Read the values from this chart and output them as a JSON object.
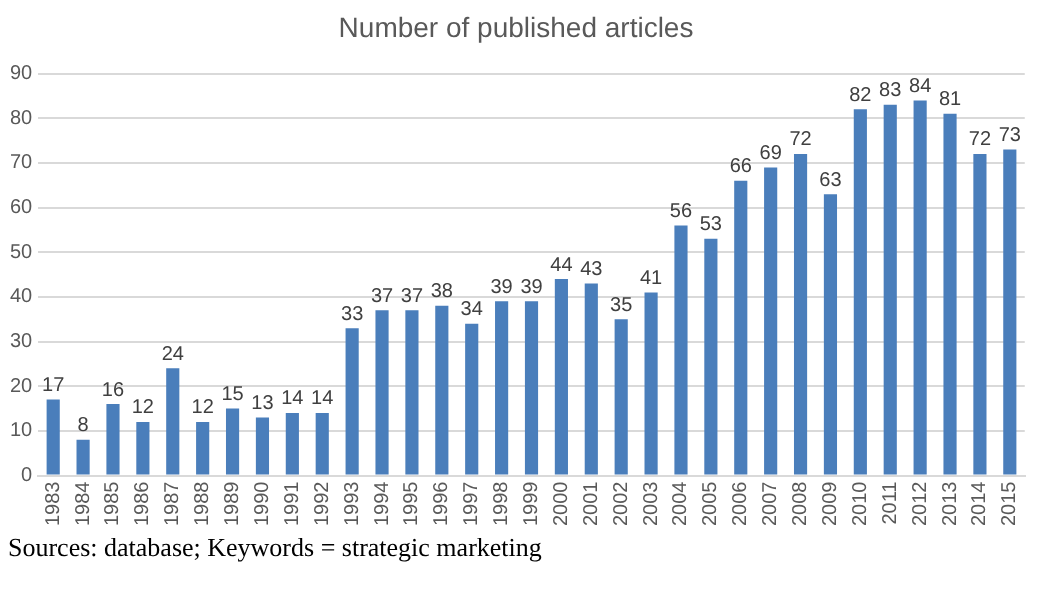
{
  "chart_data": {
    "type": "bar",
    "title": "Number of published articles",
    "categories": [
      "1983",
      "1984",
      "1985",
      "1986",
      "1987",
      "1988",
      "1989",
      "1990",
      "1991",
      "1992",
      "1993",
      "1994",
      "1995",
      "1996",
      "1997",
      "1998",
      "1999",
      "2000",
      "2001",
      "2002",
      "2003",
      "2004",
      "2005",
      "2006",
      "2007",
      "2008",
      "2009",
      "2010",
      "2011",
      "2012",
      "2013",
      "2014",
      "2015"
    ],
    "values": [
      17,
      8,
      16,
      12,
      24,
      12,
      15,
      13,
      14,
      14,
      33,
      37,
      37,
      38,
      34,
      39,
      39,
      44,
      43,
      35,
      41,
      56,
      53,
      66,
      69,
      72,
      63,
      82,
      83,
      84,
      81,
      72,
      73
    ],
    "color": "#4a7ebb",
    "ylim": [
      0,
      90
    ],
    "yticks": [
      0,
      10,
      20,
      30,
      40,
      50,
      60,
      70,
      80,
      90
    ],
    "grid": "y",
    "data_labels": true,
    "legend": false,
    "annotations": [
      "Sources: database; Keywords = strategic marketing"
    ]
  }
}
